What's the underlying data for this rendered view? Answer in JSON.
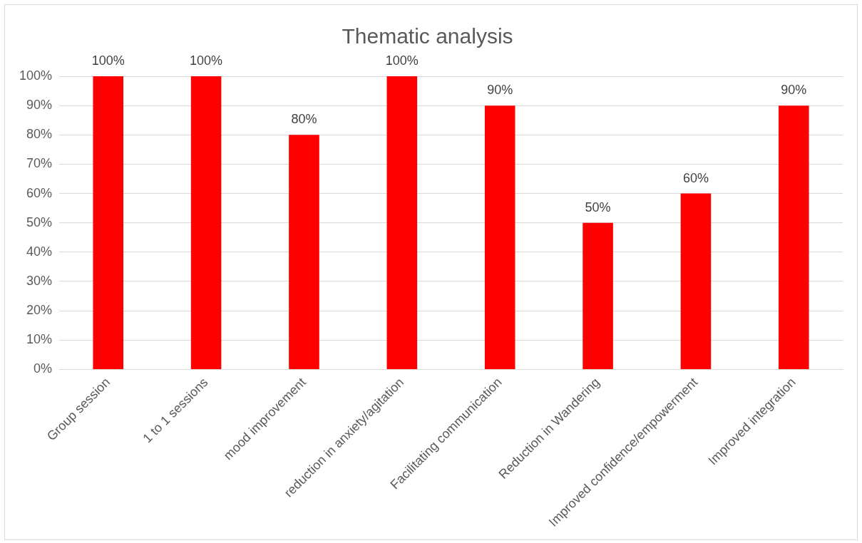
{
  "chart_data": {
    "type": "bar",
    "title": "Thematic analysis",
    "categories": [
      "Group session",
      "1 to 1 sessions",
      "mood improvement",
      "reduction in anxiety/agitation",
      "Facilitating communication",
      "Reduction in Wandering",
      "Improved confidence/empowerment",
      "Improved integration"
    ],
    "values": [
      100,
      100,
      80,
      100,
      90,
      50,
      60,
      90
    ],
    "value_labels": [
      "100%",
      "100%",
      "80%",
      "100%",
      "90%",
      "50%",
      "60%",
      "90%"
    ],
    "color": "#ff0000",
    "ylim": [
      0,
      100
    ],
    "yticks": [
      {
        "value": 0,
        "label": "0%"
      },
      {
        "value": 10,
        "label": "10%"
      },
      {
        "value": 20,
        "label": "20%"
      },
      {
        "value": 30,
        "label": "30%"
      },
      {
        "value": 40,
        "label": "40%"
      },
      {
        "value": 50,
        "label": "50%"
      },
      {
        "value": 60,
        "label": "60%"
      },
      {
        "value": 70,
        "label": "70%"
      },
      {
        "value": 80,
        "label": "80%"
      },
      {
        "value": 90,
        "label": "90%"
      },
      {
        "value": 100,
        "label": "100%"
      }
    ],
    "grid": "y"
  }
}
